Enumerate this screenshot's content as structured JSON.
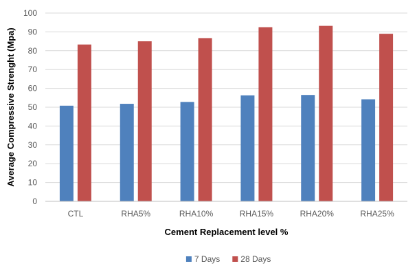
{
  "chart_data": {
    "type": "bar",
    "title": "",
    "xlabel": "Cement Replacement level %",
    "ylabel": "Average Compressive Strenght (Mpa)",
    "ylim": [
      0,
      100
    ],
    "ytick_step": 10,
    "grid": true,
    "legend_position": "bottom",
    "categories": [
      "CTL",
      "RHA5%",
      "RHA10%",
      "RHA15%",
      "RHA20%",
      "RHA25%"
    ],
    "series": [
      {
        "name": "7 Days",
        "color": "#4F81BD",
        "values": [
          50.8,
          51.8,
          52.8,
          56.3,
          56.5,
          54.2
        ]
      },
      {
        "name": "28 Days",
        "color": "#C0504D",
        "values": [
          83.3,
          85.0,
          86.7,
          92.5,
          93.2,
          89.0
        ]
      }
    ]
  }
}
